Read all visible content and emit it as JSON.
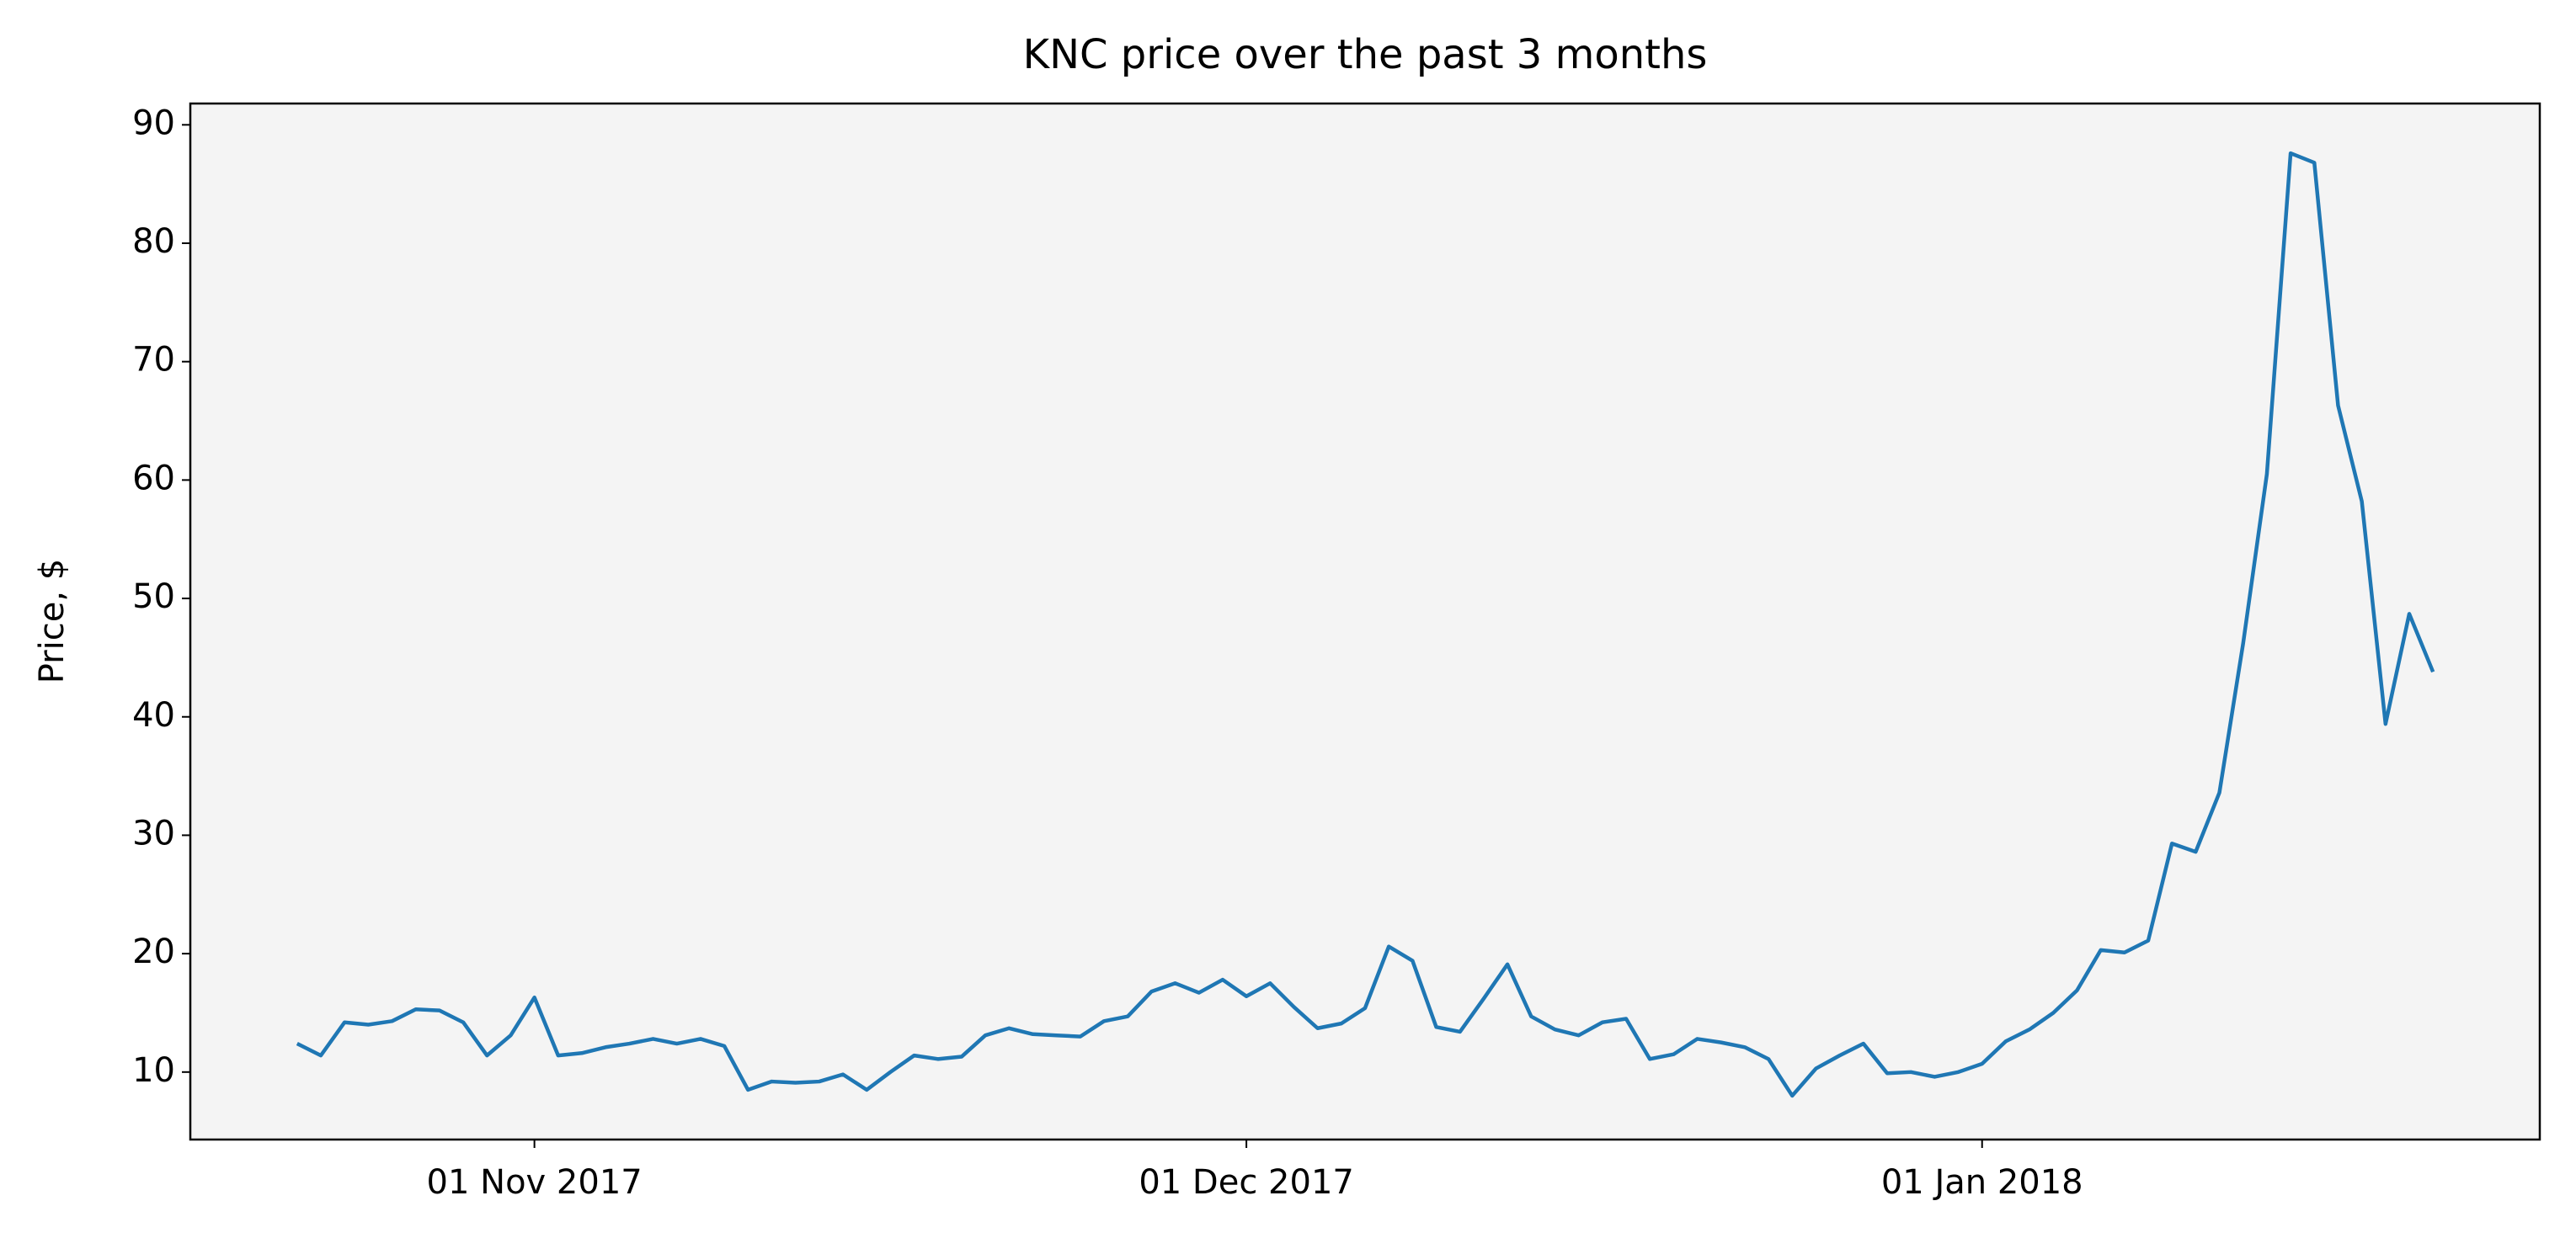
{
  "chart_data": {
    "type": "line",
    "title": "KNC price over the past 3 months",
    "y_label": "Price, $",
    "x": [
      "2017-10-22",
      "2017-10-23",
      "2017-10-24",
      "2017-10-25",
      "2017-10-26",
      "2017-10-27",
      "2017-10-28",
      "2017-10-29",
      "2017-10-30",
      "2017-10-31",
      "2017-11-01",
      "2017-11-02",
      "2017-11-03",
      "2017-11-04",
      "2017-11-05",
      "2017-11-06",
      "2017-11-07",
      "2017-11-08",
      "2017-11-09",
      "2017-11-10",
      "2017-11-11",
      "2017-11-12",
      "2017-11-13",
      "2017-11-14",
      "2017-11-15",
      "2017-11-16",
      "2017-11-17",
      "2017-11-18",
      "2017-11-19",
      "2017-11-20",
      "2017-11-21",
      "2017-11-22",
      "2017-11-23",
      "2017-11-24",
      "2017-11-25",
      "2017-11-26",
      "2017-11-27",
      "2017-11-28",
      "2017-11-29",
      "2017-11-30",
      "2017-12-01",
      "2017-12-02",
      "2017-12-03",
      "2017-12-04",
      "2017-12-05",
      "2017-12-06",
      "2017-12-07",
      "2017-12-08",
      "2017-12-09",
      "2017-12-10",
      "2017-12-11",
      "2017-12-12",
      "2017-12-13",
      "2017-12-14",
      "2017-12-15",
      "2017-12-16",
      "2017-12-17",
      "2017-12-18",
      "2017-12-19",
      "2017-12-20",
      "2017-12-21",
      "2017-12-22",
      "2017-12-23",
      "2017-12-24",
      "2017-12-25",
      "2017-12-26",
      "2017-12-27",
      "2017-12-28",
      "2017-12-29",
      "2017-12-30",
      "2017-12-31",
      "2018-01-01",
      "2018-01-02",
      "2018-01-03",
      "2018-01-04",
      "2018-01-05",
      "2018-01-06",
      "2018-01-07",
      "2018-01-08",
      "2018-01-09",
      "2018-01-10",
      "2018-01-11",
      "2018-01-12",
      "2018-01-13",
      "2018-01-14",
      "2018-01-15",
      "2018-01-16",
      "2018-01-17",
      "2018-01-18",
      "2018-01-19",
      "2018-01-20"
    ],
    "series": [
      {
        "name": "KNC",
        "color": "#1f77b4",
        "values": [
          12.4,
          11.4,
          14.2,
          14.0,
          14.3,
          15.3,
          15.2,
          14.2,
          11.4,
          13.1,
          16.3,
          11.4,
          11.6,
          12.1,
          12.4,
          12.8,
          12.4,
          12.8,
          12.2,
          8.5,
          9.2,
          9.1,
          9.2,
          9.8,
          8.5,
          10.0,
          11.4,
          11.1,
          11.3,
          13.1,
          13.7,
          13.2,
          13.1,
          13.0,
          14.3,
          14.7,
          16.8,
          17.5,
          16.7,
          17.8,
          16.4,
          17.5,
          15.5,
          13.7,
          14.1,
          15.4,
          20.6,
          19.4,
          13.8,
          13.4,
          16.2,
          19.1,
          14.7,
          13.6,
          13.1,
          14.2,
          14.5,
          11.1,
          11.5,
          12.8,
          12.5,
          12.1,
          11.1,
          8.0,
          10.3,
          11.4,
          12.4,
          9.9,
          10.0,
          9.6,
          10.0,
          10.7,
          12.6,
          13.6,
          15.0,
          16.9,
          20.3,
          20.1,
          21.1,
          29.3,
          28.6,
          33.6,
          46.2,
          60.5,
          87.6,
          86.8,
          66.3,
          58.2,
          39.4,
          48.7,
          43.8
        ]
      }
    ],
    "xlim": [
      "2017-10-17T12:00",
      "2018-01-24T12:00"
    ],
    "xticks": [
      {
        "value": "2017-11-01",
        "label": "01 Nov 2017"
      },
      {
        "value": "2017-12-01",
        "label": "01 Dec 2017"
      },
      {
        "value": "2018-01-01",
        "label": "01 Jan 2018"
      }
    ],
    "ylim": [
      4.3,
      91.8
    ],
    "yticks": [
      10,
      20,
      30,
      40,
      50,
      60,
      70,
      80,
      90
    ],
    "grid": false,
    "plot_background": "#f4f4f4"
  }
}
